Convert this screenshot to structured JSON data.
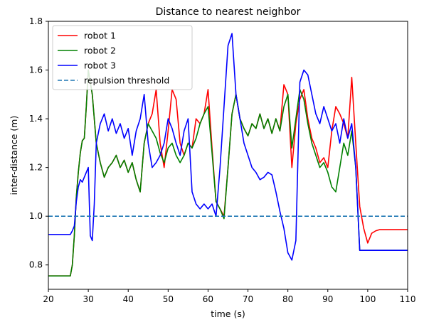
{
  "chart_data": {
    "type": "line",
    "title": "Distance to nearest neighbor",
    "xlabel": "time (s)",
    "ylabel": "inter-distance (m)",
    "xlim": [
      20,
      110
    ],
    "ylim": [
      0.7,
      1.8
    ],
    "xticks": [
      20,
      30,
      40,
      50,
      60,
      70,
      80,
      90,
      100,
      110
    ],
    "yticks": [
      0.8,
      1.0,
      1.2,
      1.4,
      1.6,
      1.8
    ],
    "xtick_labels": [
      "20",
      "30",
      "40",
      "50",
      "60",
      "70",
      "80",
      "90",
      "100",
      "110"
    ],
    "ytick_labels": [
      "0.8",
      "1.0",
      "1.2",
      "1.4",
      "1.6",
      "1.8"
    ],
    "grid": false,
    "legend_position": "top-left",
    "series": [
      {
        "name": "robot 1",
        "color": "#ff0000",
        "style": "solid",
        "x": [
          20,
          25.5,
          26,
          26.5,
          27,
          27.5,
          28,
          28.5,
          29,
          29.5,
          30,
          30.5,
          31,
          31.5,
          32,
          33,
          34,
          35,
          36,
          37,
          38,
          39,
          40,
          41,
          42,
          43,
          44,
          45,
          46,
          47,
          48,
          49,
          50,
          51,
          52,
          53,
          54,
          55,
          56,
          57,
          58,
          59,
          60,
          61,
          62,
          63,
          64,
          65,
          66,
          67,
          68,
          69,
          70,
          71,
          72,
          73,
          74,
          75,
          76,
          77,
          78,
          79,
          80,
          81,
          82,
          83,
          84,
          85,
          86,
          87,
          88,
          89,
          90,
          91,
          92,
          93,
          94,
          95,
          96,
          97,
          98,
          99,
          100,
          101,
          102,
          103,
          104,
          105,
          110
        ],
        "values": [
          0.755,
          0.755,
          0.8,
          0.92,
          1.08,
          1.18,
          1.26,
          1.31,
          1.32,
          1.45,
          1.6,
          1.55,
          1.5,
          1.4,
          1.3,
          1.22,
          1.16,
          1.2,
          1.22,
          1.25,
          1.2,
          1.23,
          1.18,
          1.22,
          1.15,
          1.1,
          1.3,
          1.38,
          1.42,
          1.52,
          1.3,
          1.2,
          1.35,
          1.52,
          1.48,
          1.3,
          1.25,
          1.3,
          1.28,
          1.4,
          1.38,
          1.42,
          1.52,
          1.28,
          1.06,
          1.03,
          1.0,
          1.2,
          1.42,
          1.5,
          1.4,
          1.36,
          1.33,
          1.38,
          1.36,
          1.42,
          1.36,
          1.4,
          1.34,
          1.4,
          1.35,
          1.54,
          1.5,
          1.2,
          1.38,
          1.48,
          1.52,
          1.4,
          1.32,
          1.28,
          1.22,
          1.24,
          1.2,
          1.35,
          1.45,
          1.42,
          1.38,
          1.32,
          1.57,
          1.3,
          1.04,
          0.95,
          0.89,
          0.93,
          0.94,
          0.945,
          0.945,
          0.945,
          0.945
        ]
      },
      {
        "name": "robot 2",
        "color": "#008000",
        "style": "solid",
        "x": [
          20,
          25.5,
          26,
          26.5,
          27,
          27.5,
          28,
          28.5,
          29,
          29.5,
          30,
          30.5,
          31,
          31.5,
          32,
          33,
          34,
          35,
          36,
          37,
          38,
          39,
          40,
          41,
          42,
          43,
          44,
          45,
          46,
          47,
          48,
          49,
          50,
          51,
          52,
          53,
          54,
          55,
          56,
          57,
          58,
          59,
          60,
          61,
          62,
          63,
          64,
          65,
          66,
          67,
          68,
          69,
          70,
          71,
          72,
          73,
          74,
          75,
          76,
          77,
          78,
          79,
          80,
          81,
          82,
          83,
          84,
          85,
          86,
          87,
          88,
          89,
          90,
          91,
          92,
          93,
          94,
          95,
          96,
          97,
          98,
          99,
          100,
          101,
          102,
          103,
          104,
          105,
          110
        ],
        "values": [
          0.755,
          0.755,
          0.8,
          0.92,
          1.08,
          1.18,
          1.26,
          1.31,
          1.32,
          1.45,
          1.6,
          1.55,
          1.5,
          1.4,
          1.3,
          1.22,
          1.16,
          1.2,
          1.22,
          1.25,
          1.2,
          1.23,
          1.18,
          1.22,
          1.15,
          1.1,
          1.3,
          1.38,
          1.35,
          1.32,
          1.26,
          1.22,
          1.28,
          1.3,
          1.25,
          1.22,
          1.25,
          1.3,
          1.28,
          1.32,
          1.38,
          1.42,
          1.45,
          1.26,
          1.06,
          1.03,
          0.99,
          1.2,
          1.42,
          1.5,
          1.4,
          1.36,
          1.33,
          1.38,
          1.36,
          1.42,
          1.36,
          1.4,
          1.34,
          1.4,
          1.35,
          1.45,
          1.5,
          1.28,
          1.4,
          1.52,
          1.48,
          1.38,
          1.3,
          1.25,
          1.2,
          1.22,
          1.18,
          1.12,
          1.1,
          1.2,
          1.3,
          1.25,
          1.35,
          1.2,
          0.86,
          0.86,
          0.86,
          0.86,
          0.86,
          0.86,
          0.86,
          0.86,
          0.86
        ]
      },
      {
        "name": "robot 3",
        "color": "#0000ff",
        "style": "solid",
        "x": [
          20,
          25.5,
          26,
          26.5,
          27,
          27.5,
          28,
          28.5,
          29,
          29.5,
          30,
          30.5,
          31,
          31.5,
          32,
          33,
          34,
          35,
          36,
          37,
          38,
          39,
          40,
          41,
          42,
          43,
          44,
          45,
          46,
          47,
          48,
          49,
          50,
          51,
          52,
          53,
          54,
          55,
          56,
          57,
          58,
          59,
          60,
          61,
          62,
          63,
          64,
          65,
          66,
          67,
          68,
          69,
          70,
          71,
          72,
          73,
          74,
          75,
          76,
          77,
          78,
          79,
          80,
          81,
          82,
          83,
          84,
          85,
          86,
          87,
          88,
          89,
          90,
          91,
          92,
          93,
          94,
          95,
          96,
          97,
          98,
          99,
          100,
          101,
          102,
          103,
          104,
          105,
          110
        ],
        "values": [
          0.925,
          0.925,
          0.94,
          0.96,
          1.06,
          1.12,
          1.15,
          1.14,
          1.16,
          1.18,
          1.2,
          0.92,
          0.9,
          1.05,
          1.3,
          1.38,
          1.42,
          1.35,
          1.4,
          1.34,
          1.38,
          1.32,
          1.36,
          1.25,
          1.35,
          1.4,
          1.5,
          1.3,
          1.2,
          1.22,
          1.25,
          1.3,
          1.4,
          1.36,
          1.3,
          1.25,
          1.35,
          1.4,
          1.1,
          1.05,
          1.03,
          1.05,
          1.03,
          1.05,
          1.0,
          1.2,
          1.45,
          1.7,
          1.75,
          1.5,
          1.4,
          1.3,
          1.25,
          1.2,
          1.18,
          1.15,
          1.16,
          1.18,
          1.17,
          1.1,
          1.02,
          0.95,
          0.85,
          0.82,
          0.9,
          1.55,
          1.6,
          1.58,
          1.5,
          1.42,
          1.38,
          1.45,
          1.4,
          1.35,
          1.38,
          1.3,
          1.4,
          1.32,
          1.38,
          1.2,
          0.86,
          0.86,
          0.86,
          0.86,
          0.86,
          0.86,
          0.86,
          0.86,
          0.86
        ]
      },
      {
        "name": "repulsion threshold",
        "color": "#1f77b4",
        "style": "dashed",
        "x": [
          20,
          110
        ],
        "values": [
          1.0,
          1.0
        ]
      }
    ]
  }
}
